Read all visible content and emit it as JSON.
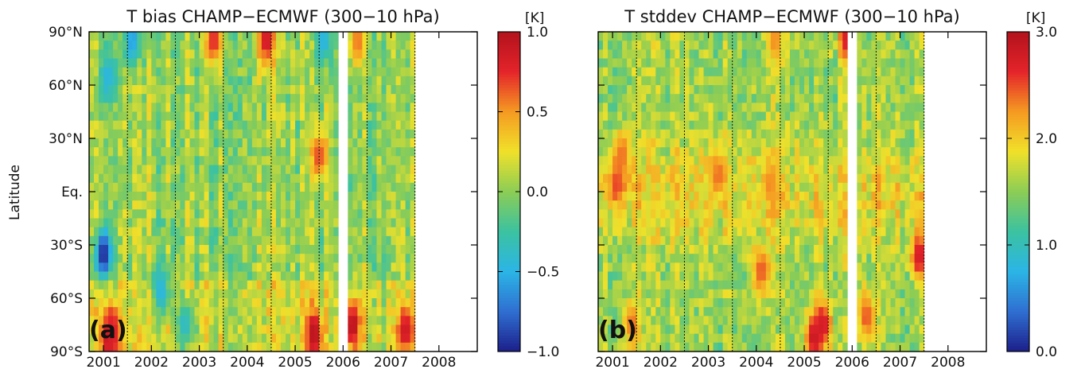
{
  "figure": {
    "ylabel": "Latitude"
  },
  "chart_data": [
    {
      "type": "heatmap",
      "panel_label": "(a)",
      "title": "T bias CHAMP−ECMWF (300−10 hPa)",
      "colorbar": {
        "unit": "[K]",
        "range": [
          -1.0,
          1.0
        ],
        "ticks": [
          -1.0,
          -0.5,
          0.0,
          0.5,
          1.0
        ],
        "tick_labels": [
          "−1.0",
          "−0.5",
          "0.0",
          "0.5",
          "1.0"
        ],
        "colormap": [
          "#1c1f8a",
          "#2f6fd1",
          "#2bb5e6",
          "#3cc2a0",
          "#8ccd55",
          "#f0e12a",
          "#f59a22",
          "#e4242a",
          "#b3121d"
        ]
      },
      "x_tick_labels": [
        "2001",
        "2002",
        "2003",
        "2004",
        "2005",
        "2006",
        "2007",
        "2008"
      ],
      "y_tick_labels": [
        "90°N",
        "60°N",
        "30°N",
        "Eq.",
        "30°S",
        "60°S",
        "90°S"
      ],
      "xlim": [
        2000.7,
        2008.8
      ],
      "ylim": [
        -90,
        90
      ],
      "data_start": 2000.7,
      "data_end": 2007.5,
      "gap_at": 2006.0,
      "year_boundaries": [
        2001.5,
        2002.5,
        2003.5,
        2004.5,
        2005.5,
        2006.5,
        2007.5
      ],
      "features": [
        {
          "t": 2001.1,
          "lat": -82,
          "value": 1.0
        },
        {
          "t": 2001.2,
          "lat": -78,
          "value": 0.8
        },
        {
          "t": 2005.4,
          "lat": -80,
          "value": 1.0
        },
        {
          "t": 2006.2,
          "lat": -75,
          "value": 1.0
        },
        {
          "t": 2007.3,
          "lat": -78,
          "value": 0.9
        },
        {
          "t": 2003.3,
          "lat": 85,
          "value": 0.8
        },
        {
          "t": 2004.4,
          "lat": 85,
          "value": 0.9
        },
        {
          "t": 2006.3,
          "lat": 85,
          "value": 0.6
        },
        {
          "t": 2005.5,
          "lat": 20,
          "value": 0.7
        },
        {
          "t": 2001.6,
          "lat": 85,
          "value": -0.6
        },
        {
          "t": 2005.6,
          "lat": 85,
          "value": -0.5
        },
        {
          "t": 2001.0,
          "lat": -35,
          "value": -1.0
        },
        {
          "t": 2002.2,
          "lat": -55,
          "value": -0.5
        },
        {
          "t": 2002.7,
          "lat": -75,
          "value": -0.4
        },
        {
          "t": 2001.1,
          "lat": 65,
          "value": -0.5
        }
      ]
    },
    {
      "type": "heatmap",
      "panel_label": "(b)",
      "title": "T stddev CHAMP−ECMWF (300−10 hPa)",
      "colorbar": {
        "unit": "[K]",
        "range": [
          0.0,
          3.0
        ],
        "ticks": [
          0.0,
          1.0,
          2.0,
          3.0
        ],
        "tick_labels": [
          "0.0",
          "1.0",
          "2.0",
          "3.0"
        ],
        "colormap": [
          "#1c1f8a",
          "#2f6fd1",
          "#2bb5e6",
          "#3cc2a0",
          "#8ccd55",
          "#f0e12a",
          "#f59a22",
          "#e4242a",
          "#b3121d"
        ]
      },
      "x_tick_labels": [
        "2001",
        "2002",
        "2003",
        "2004",
        "2005",
        "2006",
        "2007",
        "2008"
      ],
      "y_tick_labels": [
        "90°N",
        "60°N",
        "30°N",
        "Eq.",
        "30°S",
        "60°S",
        "90°S"
      ],
      "xlim": [
        2000.7,
        2008.8
      ],
      "ylim": [
        -90,
        90
      ],
      "data_start": 2000.7,
      "data_end": 2007.5,
      "gap_at": 2006.0,
      "year_boundaries": [
        2001.5,
        2002.5,
        2003.5,
        2004.5,
        2005.5,
        2006.5,
        2007.5
      ],
      "features": [
        {
          "t": 2001.1,
          "lat": 5,
          "value": 2.6
        },
        {
          "t": 2001.2,
          "lat": 20,
          "value": 2.4
        },
        {
          "t": 2003.2,
          "lat": 10,
          "value": 2.4
        },
        {
          "t": 2004.3,
          "lat": 5,
          "value": 2.3
        },
        {
          "t": 2005.2,
          "lat": -82,
          "value": 2.9
        },
        {
          "t": 2005.4,
          "lat": -75,
          "value": 2.8
        },
        {
          "t": 2006.3,
          "lat": -70,
          "value": 2.5
        },
        {
          "t": 2005.9,
          "lat": 85,
          "value": 2.8
        },
        {
          "t": 2004.1,
          "lat": -45,
          "value": 2.5
        },
        {
          "t": 2007.4,
          "lat": -36,
          "value": 2.8
        },
        {
          "t": 2001.4,
          "lat": -75,
          "value": 2.4
        },
        {
          "t": 2004.4,
          "lat": 85,
          "value": 2.3
        }
      ]
    }
  ]
}
